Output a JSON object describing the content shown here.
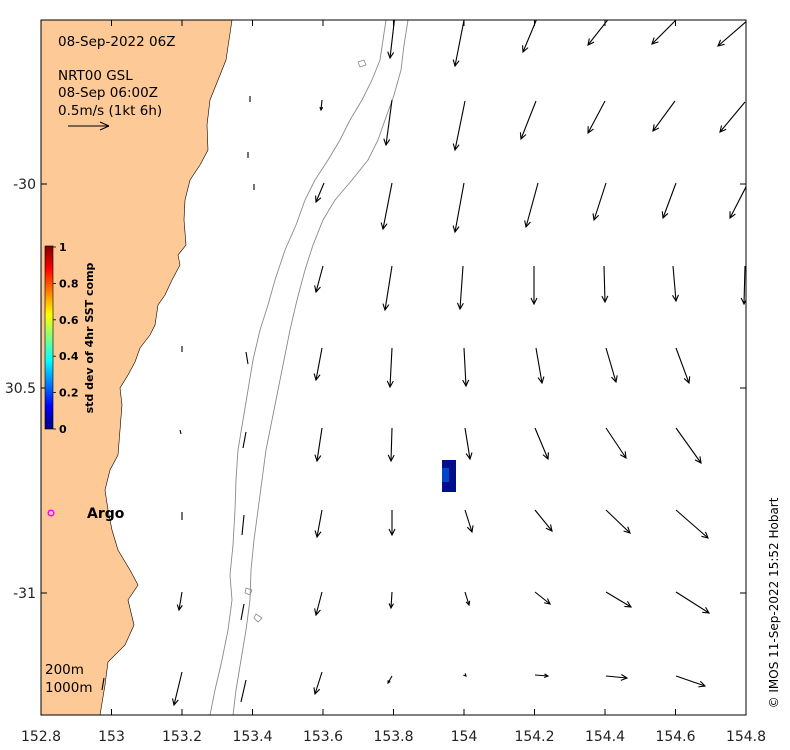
{
  "map": {
    "title_date": "08-Sep-2022 06Z",
    "product": "NRT00 GSL",
    "product_time": "08-Sep 06:00Z",
    "scale_label": "0.5m/s (1kt 6h)",
    "x_ticks": [
      "152.8",
      "153",
      "153.2",
      "153.4",
      "153.6",
      "153.8",
      "154",
      "154.2",
      "154.4",
      "154.6",
      "154.8"
    ],
    "y_ticks": [
      "-30",
      "30.5",
      "-31"
    ],
    "colorbar": {
      "title": "std dev of 4hr SST comp",
      "ticks": [
        "1",
        "0.8",
        "0.6",
        "0.4",
        "0.2",
        "0"
      ]
    },
    "argo_label": "Argo",
    "depth_labels": [
      "200m",
      "1000m"
    ],
    "credit": "© IMOS 11-Sep-2022 15:52 Hobart",
    "colors": {
      "land": "#fdc996",
      "ocean": "#ffffff",
      "argo": "#ff00ff",
      "sst_patch": "#000e8c",
      "sst_patch_light": "#0046c8"
    }
  }
}
